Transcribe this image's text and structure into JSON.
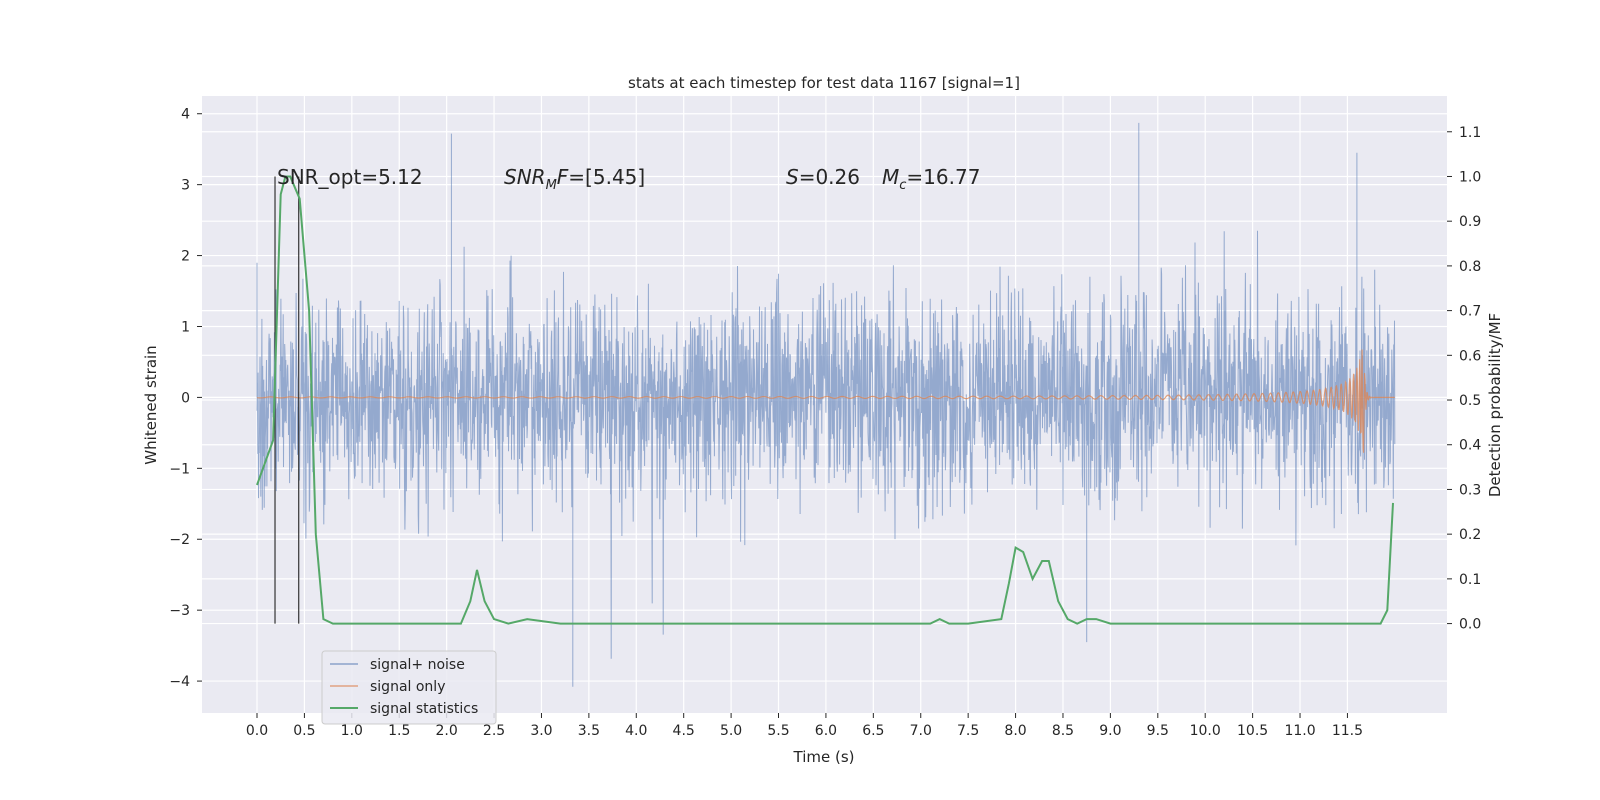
{
  "chart_data": {
    "type": "line",
    "title": "stats at each timestep for test data 1167 [signal=1]",
    "xlabel": "Time (s)",
    "ylabel": "Whitened strain",
    "y2label": "Detection probability/MF",
    "xlim": [
      -0.58,
      12.55
    ],
    "ylim": [
      -4.45,
      4.25
    ],
    "y2lim": [
      -0.2,
      1.18
    ],
    "x_ticks": [
      "0.0",
      "0.5",
      "1.0",
      "1.5",
      "2.0",
      "2.5",
      "3.0",
      "3.5",
      "4.0",
      "4.5",
      "5.0",
      "5.5",
      "6.0",
      "6.5",
      "7.0",
      "7.5",
      "8.0",
      "8.5",
      "9.0",
      "9.5",
      "10.0",
      "10.5",
      "11.0",
      "11.5"
    ],
    "y_ticks": [
      -4,
      -3,
      -2,
      -1,
      0,
      1,
      2,
      3,
      4
    ],
    "y2_ticks": [
      "0.0",
      "0.1",
      "0.2",
      "0.3",
      "0.4",
      "0.5",
      "0.6",
      "0.7",
      "0.8",
      "0.9",
      "1.0",
      "1.1"
    ],
    "grid": true,
    "legend_position": "lower-left",
    "annotations": {
      "snr_opt": "SNR_opt=5.12",
      "snr_mf_main": "SNR",
      "snr_mf_sub": "M",
      "snr_mf_rest": "F",
      "snr_mf_value": "=[5.45]",
      "s_symbol": "S",
      "s_value": "=0.26",
      "mc_symbol": "M",
      "mc_sub": "c",
      "mc_value": "=16.77"
    },
    "vertical_lines_x": [
      0.19,
      0.44
    ],
    "series": [
      {
        "name": "signal+ noise",
        "color": "#4c72b0",
        "axis": "left",
        "x_range": [
          0.0,
          12.0
        ],
        "envelope_max": 3.87,
        "envelope_min": -4.08,
        "description_points": [
          [
            0.0,
            1.9
          ],
          [
            2.05,
            3.72
          ],
          [
            3.33,
            -4.08
          ],
          [
            8.75,
            -3.45
          ],
          [
            9.3,
            3.87
          ],
          [
            11.6,
            3.45
          ]
        ]
      },
      {
        "name": "signal only",
        "color": "#dd8452",
        "axis": "left",
        "chirp_peak_x": 11.67,
        "chirp_max": 0.92,
        "chirp_min": -0.78
      },
      {
        "name": "signal statistics",
        "color": "#55a868",
        "axis": "right",
        "x": [
          0.0,
          0.17,
          0.25,
          0.3,
          0.35,
          0.45,
          0.55,
          0.62,
          0.7,
          0.8,
          1.0,
          1.2,
          2.15,
          2.25,
          2.32,
          2.4,
          2.5,
          2.65,
          2.85,
          3.2,
          3.7,
          4.5,
          7.1,
          7.2,
          7.3,
          7.5,
          7.85,
          7.93,
          8.0,
          8.08,
          8.18,
          8.28,
          8.35,
          8.45,
          8.55,
          8.65,
          8.75,
          8.85,
          9.0,
          9.5,
          11.85,
          11.92,
          11.98
        ],
        "y": [
          0.31,
          0.41,
          0.96,
          1.0,
          1.0,
          0.95,
          0.7,
          0.2,
          0.01,
          0.0,
          0.0,
          0.0,
          0.0,
          0.05,
          0.12,
          0.05,
          0.01,
          0.0,
          0.01,
          0.0,
          0.0,
          0.0,
          0.0,
          0.01,
          0.0,
          0.0,
          0.01,
          0.09,
          0.17,
          0.16,
          0.1,
          0.14,
          0.14,
          0.05,
          0.01,
          0.0,
          0.01,
          0.01,
          0.0,
          0.0,
          0.0,
          0.03,
          0.27
        ]
      }
    ]
  }
}
